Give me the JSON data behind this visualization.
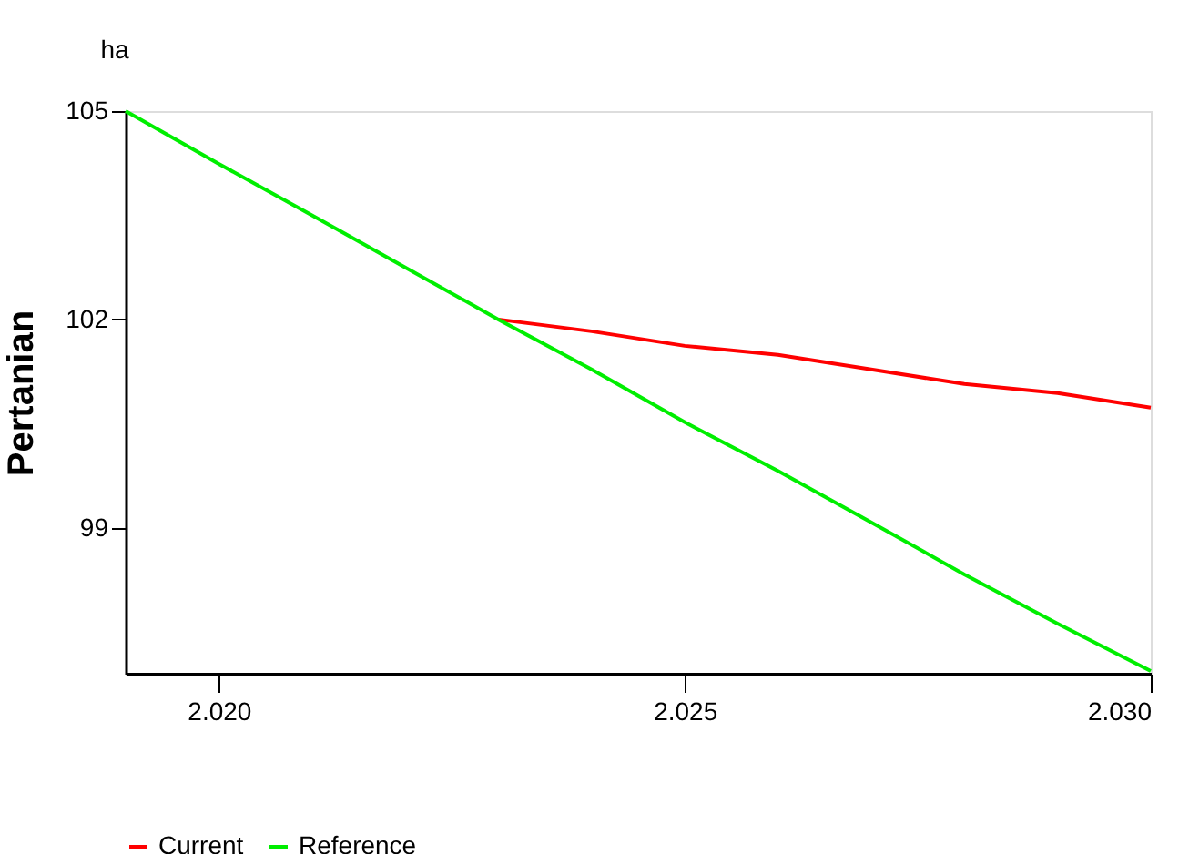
{
  "chart_data": {
    "type": "line",
    "ylabel": "Pertanian",
    "annotations": [
      "ha"
    ],
    "x": [
      2019,
      2020,
      2021,
      2022,
      2023,
      2024,
      2025,
      2026,
      2027,
      2028,
      2029,
      2030
    ],
    "xlim": [
      2019,
      2030
    ],
    "ylim": [
      96.9,
      105
    ],
    "xticks": [
      {
        "value": 2020,
        "label": "2.020"
      },
      {
        "value": 2025,
        "label": "2.025"
      },
      {
        "value": 2030,
        "label": "2.030"
      }
    ],
    "yticks": [
      99,
      102,
      105
    ],
    "series": [
      {
        "name": "Current",
        "color": "#ff0000",
        "values": [
          null,
          null,
          null,
          null,
          102,
          101.83,
          101.62,
          101.49,
          101.28,
          101.07,
          100.94,
          100.73
        ]
      },
      {
        "name": "Reference",
        "color": "#00ee00",
        "values": [
          105,
          104.24,
          103.5,
          102.75,
          102,
          101.28,
          100.52,
          99.82,
          99.08,
          98.33,
          97.62,
          96.94
        ]
      }
    ],
    "grid": false,
    "legend": "bottom",
    "marker": "none",
    "line_style": "solid"
  }
}
